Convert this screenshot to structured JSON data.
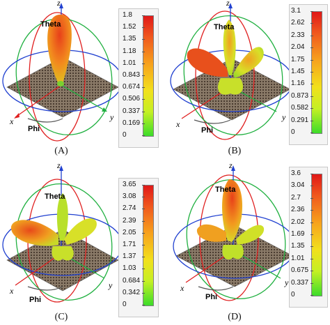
{
  "panels": [
    {
      "caption": "(A)",
      "ticks": [
        "1.8",
        "1.52",
        "1.35",
        "1.18",
        "1.01",
        "0.843",
        "0.674",
        "0.506",
        "0.337",
        "0.169",
        "0"
      ]
    },
    {
      "caption": "(B)",
      "ticks": [
        "3.1",
        "2.62",
        "2.33",
        "2.04",
        "1.75",
        "1.45",
        "1.16",
        "0.873",
        "0.582",
        "0.291",
        "0"
      ]
    },
    {
      "caption": "(C)",
      "ticks": [
        "3.65",
        "3.08",
        "2.74",
        "2.39",
        "2.05",
        "1.71",
        "1.37",
        "1.03",
        "0.684",
        "0.342",
        "0"
      ]
    },
    {
      "caption": "(D)",
      "ticks": [
        "3.6",
        "3.04",
        "2.7",
        "2.36",
        "2.02",
        "1.69",
        "1.35",
        "1.01",
        "0.675",
        "0.337",
        "0"
      ]
    }
  ],
  "axis_labels": {
    "x": "x",
    "y": "y",
    "z": "z",
    "theta": "Theta",
    "phi": "Phi"
  },
  "colors": {
    "bar_top": "#e01818",
    "bar_mid": "#f2e01c",
    "bar_bottom": "#3cdc2a",
    "ring_red": "#e02020",
    "ring_green": "#20b040",
    "ring_blue": "#2040d0",
    "ground_plane": "#7a6a5a"
  }
}
